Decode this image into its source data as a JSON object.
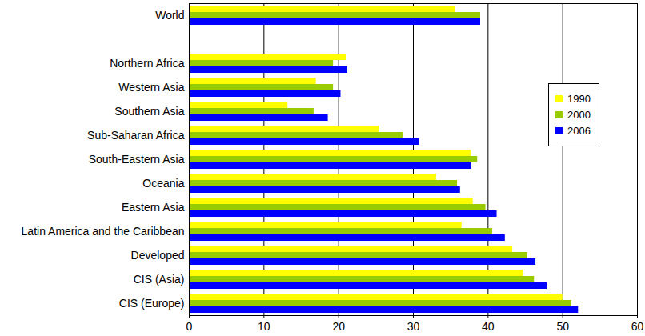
{
  "chart_data": {
    "type": "bar",
    "orientation": "horizontal",
    "categories": [
      "World",
      null,
      "Northern Africa",
      "Western Asia",
      "Southern Asia",
      "Sub-Saharan Africa",
      "South-Eastern Asia",
      "Oceania",
      "Eastern Asia",
      "Latin America and the Caribbean",
      "Developed",
      "CIS (Asia)",
      "CIS (Europe)"
    ],
    "series": [
      {
        "name": "1990",
        "color": "#ffff00",
        "values": [
          35.6,
          null,
          21.0,
          17.0,
          13.2,
          25.4,
          37.7,
          33.1,
          38.0,
          36.5,
          43.3,
          44.7,
          50.0
        ]
      },
      {
        "name": "2000",
        "color": "#99cc00",
        "values": [
          39.0,
          null,
          19.3,
          19.3,
          16.7,
          28.6,
          38.6,
          35.9,
          39.7,
          40.6,
          45.3,
          46.2,
          51.2
        ]
      },
      {
        "name": "2006",
        "color": "#0000ff",
        "values": [
          39.0,
          null,
          21.2,
          20.3,
          18.6,
          30.8,
          37.8,
          36.3,
          41.2,
          42.3,
          46.4,
          47.9,
          52.1
        ]
      }
    ],
    "xlim": [
      0,
      60
    ],
    "xticks": [
      0,
      10,
      20,
      30,
      40,
      50,
      60
    ],
    "grid": true,
    "legend": "right"
  }
}
